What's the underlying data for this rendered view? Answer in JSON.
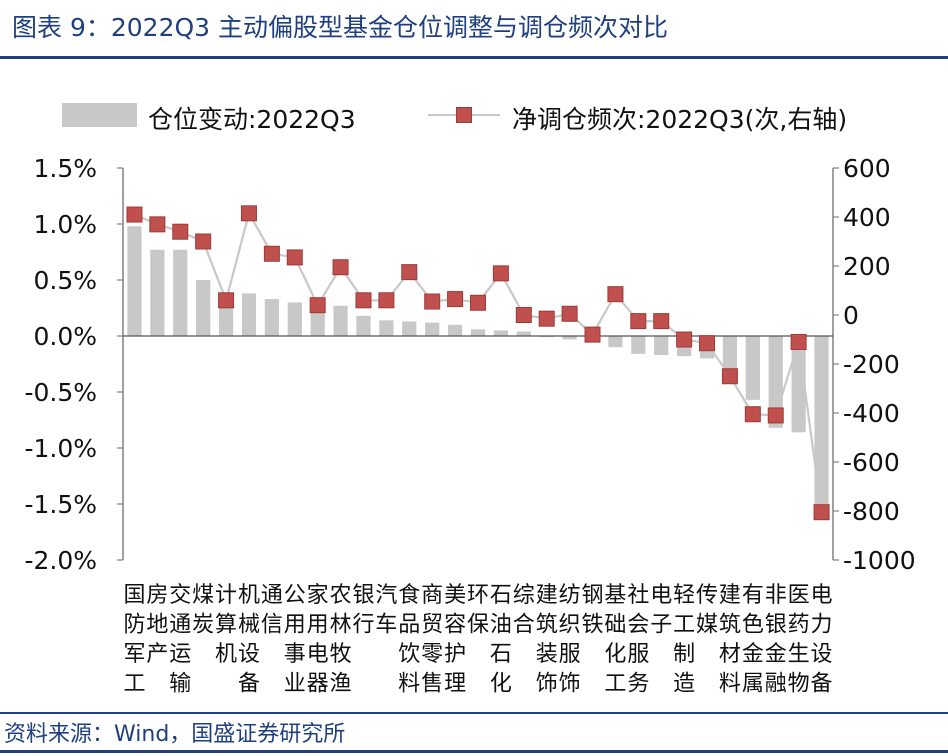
{
  "title": "图表 9：2022Q3 主动偏股型基金仓位调整与调仓频次对比",
  "source": "资料来源：Wind，国盛证券研究所",
  "colors": {
    "bar": "#c8c8c8",
    "line": "#c8c8c8",
    "marker": "#c0504d",
    "marker_edge": "#9e3a37",
    "axis": "#808080",
    "title": "#1f3f7f"
  },
  "chart_data": {
    "type": "bar+line",
    "categories": [
      "国防军工",
      "房地产",
      "交通运输",
      "煤炭",
      "计算机",
      "机械设备",
      "通信",
      "公用事业",
      "家用电器",
      "农林牧渔",
      "银行",
      "汽车",
      "食品饮料",
      "商贸零售",
      "美容护理",
      "环保",
      "石油石化",
      "综合",
      "建筑装饰",
      "纺织服饰",
      "钢铁",
      "基础化工",
      "社会服务",
      "电子",
      "轻工制造",
      "传媒",
      "建筑材料",
      "有色金属",
      "非银金融",
      "医药生物",
      "电力设备"
    ],
    "category_labels": [
      "国\n防\n军\n工",
      "房\n地\n产",
      "交\n通\n运\n输",
      "煤\n炭",
      "计\n算\n机",
      "机\n械\n设\n备",
      "通\n信",
      "公\n用\n事\n业",
      "家\n用\n电\n器",
      "农\n林\n牧\n渔",
      "银\n行",
      "汽\n车",
      "食\n品\n饮\n料",
      "商\n贸\n零\n售",
      "美\n容\n护\n理",
      "环\n保",
      "石\n油\n石\n化",
      "综\n合",
      "建\n筑\n装\n饰",
      "纺\n织\n服\n饰",
      "钢\n铁",
      "基\n础\n化\n工",
      "社\n会\n服\n务",
      "电\n子",
      "轻\n工\n制\n造",
      "传\n媒",
      "建\n筑\n材\n料",
      "有\n色\n金\n属",
      "非\n银\n金\n融",
      "医\n药\n生\n物",
      "电\n力\n设\n备"
    ],
    "series": [
      {
        "name": "仓位变动:2022Q3",
        "type": "bar",
        "axis": "left",
        "unit": "%",
        "values": [
          0.98,
          0.77,
          0.77,
          0.5,
          0.38,
          0.38,
          0.33,
          0.3,
          0.3,
          0.27,
          0.18,
          0.14,
          0.13,
          0.12,
          0.1,
          0.06,
          0.05,
          0.04,
          -0.01,
          -0.03,
          -0.05,
          -0.1,
          -0.16,
          -0.17,
          -0.18,
          -0.2,
          -0.32,
          -0.57,
          -0.82,
          -0.86,
          -1.62
        ]
      },
      {
        "name": "净调仓频次:2022Q3(次,右轴)",
        "type": "line",
        "axis": "right",
        "values": [
          410,
          370,
          340,
          300,
          60,
          415,
          250,
          235,
          40,
          195,
          60,
          60,
          175,
          55,
          65,
          50,
          170,
          0,
          -15,
          5,
          -80,
          85,
          -25,
          -25,
          -100,
          -115,
          -250,
          -405,
          -410,
          -110,
          -805
        ]
      }
    ],
    "y_left": {
      "range": [
        -2.0,
        1.5
      ],
      "ticks": [
        -2.0,
        -1.5,
        -1.0,
        -0.5,
        0.0,
        0.5,
        1.0,
        1.5
      ],
      "tick_labels": [
        "-2.0%",
        "-1.5%",
        "-1.0%",
        "-0.5%",
        "0.0%",
        "0.5%",
        "1.0%",
        "1.5%"
      ]
    },
    "y_right": {
      "range": [
        -1000,
        600
      ],
      "ticks": [
        -1000,
        -800,
        -600,
        -400,
        -200,
        0,
        200,
        400,
        600
      ],
      "tick_labels": [
        "-1000",
        "-800",
        "-600",
        "-400",
        "-200",
        "0",
        "200",
        "400",
        "600"
      ]
    },
    "legend_position": "top"
  }
}
